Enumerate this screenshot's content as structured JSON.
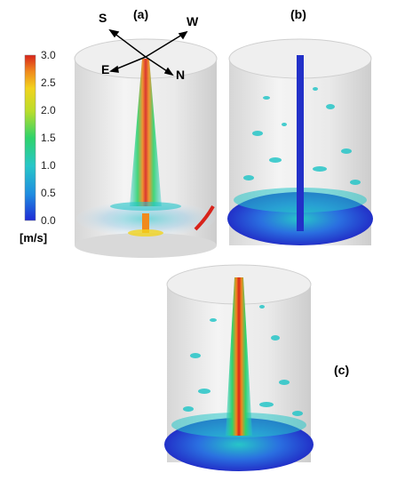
{
  "panels": {
    "a": "(a)",
    "b": "(b)",
    "c": "(c)"
  },
  "compass": {
    "south": "S",
    "west": "W",
    "east": "E",
    "north": "N"
  },
  "colorbar": {
    "unit": "[m/s]",
    "ticks": [
      "3.0",
      "2.5",
      "2.0",
      "1.5",
      "1.0",
      "0.5",
      "0.0"
    ],
    "colors": [
      "#1f2bd6",
      "#1f8de0",
      "#27c6c8",
      "#2fd36b",
      "#b9dd2b",
      "#f2d31d",
      "#f08a1c",
      "#d8231b"
    ]
  }
}
